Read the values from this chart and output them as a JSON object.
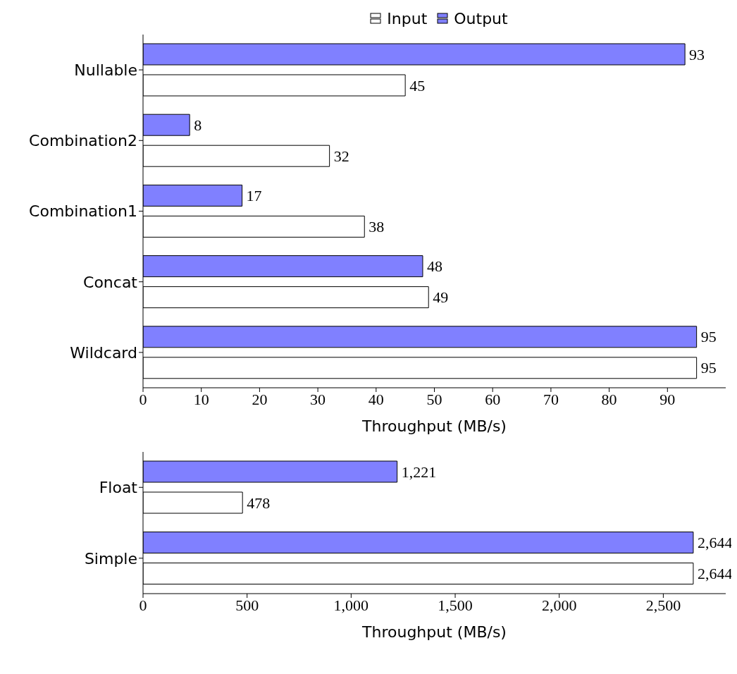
{
  "chart_data": [
    {
      "type": "bar",
      "orientation": "horizontal",
      "xlabel": "Throughput (MB/s)",
      "legend": "top",
      "data_labels": true,
      "categories": [
        "Nullable",
        "Combination2",
        "Combination1",
        "Concat",
        "Wildcard"
      ],
      "series": [
        {
          "name": "Output",
          "color": "#8080ff",
          "values": [
            93,
            8,
            17,
            48,
            95
          ]
        },
        {
          "name": "Input",
          "color": "#ffffff",
          "values": [
            45,
            32,
            38,
            49,
            95
          ]
        }
      ],
      "xlim": [
        0,
        100
      ],
      "xticks": [
        0,
        10,
        20,
        30,
        40,
        50,
        60,
        70,
        80,
        90
      ],
      "grid": false
    },
    {
      "type": "bar",
      "orientation": "horizontal",
      "xlabel": "Throughput (MB/s)",
      "categories": [
        "Float",
        "Simple"
      ],
      "series": [
        {
          "color": "#8080ff",
          "values": [
            1221,
            2644
          ],
          "value_labels": [
            "1,221",
            "2,644"
          ]
        },
        {
          "color": "#ffffff",
          "values": [
            478,
            2644
          ],
          "value_labels": [
            "478",
            "2,644"
          ]
        }
      ],
      "xlim": [
        0,
        2800
      ],
      "xticks": [
        0,
        500,
        {
          "value": 1000,
          "label": "1,000"
        },
        {
          "value": 1500,
          "label": "1,500"
        },
        {
          "value": 2000,
          "label": "2,000"
        },
        {
          "value": 2500,
          "label": "2,500"
        }
      ],
      "grid": false
    }
  ]
}
